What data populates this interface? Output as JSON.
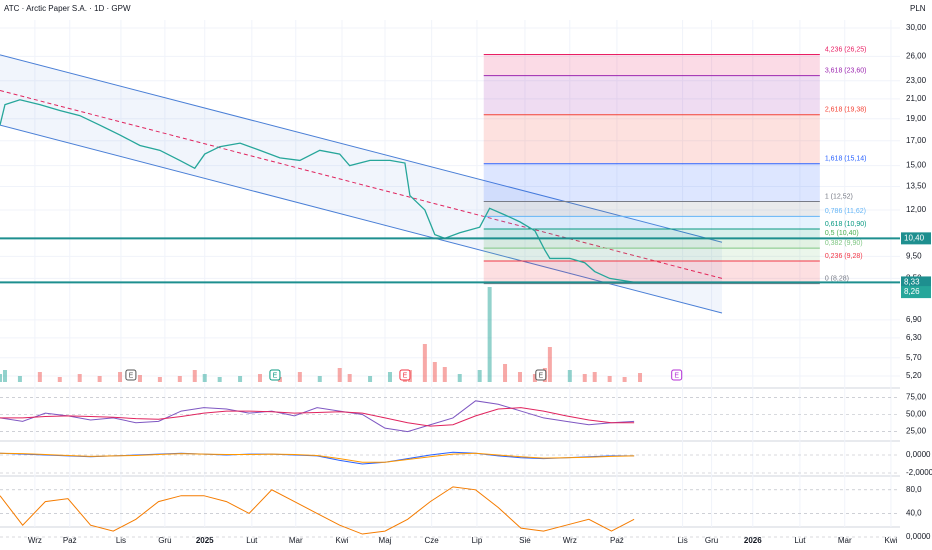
{
  "header": {
    "title": "ATC · Arctic Paper S.A. · 1D · GPW",
    "currency": "PLN"
  },
  "chart_data": [
    {
      "type": "price",
      "x": [
        -0.77,
        -0.66,
        -0.33,
        0.11,
        0.55,
        0.99,
        1.43,
        1.88,
        2.32,
        2.76,
        3.2,
        3.53,
        3.75,
        4.08,
        4.53,
        4.97,
        5.41,
        5.85,
        6.29,
        6.73,
        6.95,
        7.4,
        7.84,
        8.17,
        8.28,
        8.61,
        8.83,
        9.05,
        9.38,
        9.82,
        10.04,
        10.38,
        10.71,
        11.04,
        11.26,
        11.37,
        11.81,
        12.14,
        12.36,
        12.69,
        13.02,
        13.36
      ],
      "values": [
        18.4,
        20.4,
        20.9,
        20.4,
        19.8,
        19.3,
        18.4,
        17.5,
        16.6,
        16.2,
        15.4,
        14.8,
        15.9,
        16.5,
        16.8,
        16.2,
        15.6,
        15.4,
        16.2,
        15.9,
        15.0,
        15.4,
        15.4,
        15.2,
        12.9,
        12.0,
        10.6,
        10.4,
        10.7,
        11.0,
        12.1,
        11.7,
        11.3,
        10.8,
        9.8,
        9.4,
        9.4,
        9.2,
        8.8,
        8.5,
        8.4,
        8.3
      ],
      "color": "#26a69a",
      "xlim": [
        -0.77,
        19.1
      ],
      "xticks": [
        {
          "value": 0,
          "label": "Wrz"
        },
        {
          "value": 0.77,
          "label": "Paź"
        },
        {
          "value": 1.9,
          "label": "Lis"
        },
        {
          "value": 2.87,
          "label": "Gru"
        },
        {
          "value": 3.75,
          "label": "2025"
        },
        {
          "value": 4.79,
          "label": "Lut"
        },
        {
          "value": 5.76,
          "label": "Mar"
        },
        {
          "value": 6.78,
          "label": "Kwi"
        },
        {
          "value": 7.73,
          "label": "Maj"
        },
        {
          "value": 8.76,
          "label": "Cze"
        },
        {
          "value": 9.76,
          "label": "Lip"
        },
        {
          "value": 10.82,
          "label": "Sie"
        },
        {
          "value": 11.81,
          "label": "Wrz"
        },
        {
          "value": 12.85,
          "label": "Paź"
        },
        {
          "value": 14.3,
          "label": "Lis"
        },
        {
          "value": 14.94,
          "label": "Gru"
        },
        {
          "value": 15.85,
          "label": "2026"
        },
        {
          "value": 16.89,
          "label": "Lut"
        },
        {
          "value": 17.88,
          "label": "Mar"
        },
        {
          "value": 18.9,
          "label": "Kwi"
        }
      ],
      "ylim": [
        5.2,
        30
      ],
      "log_scale": true,
      "yticks": [
        {
          "value": 30,
          "label": "30,00"
        },
        {
          "value": 26,
          "label": "26,00"
        },
        {
          "value": 23,
          "label": "23,00"
        },
        {
          "value": 21,
          "label": "21,00"
        },
        {
          "value": 19,
          "label": "19,00"
        },
        {
          "value": 17,
          "label": "17,00"
        },
        {
          "value": 15,
          "label": "15,00"
        },
        {
          "value": 13.5,
          "label": "13,50"
        },
        {
          "value": 12,
          "label": "12,00"
        },
        {
          "value": 9.5,
          "label": "9,50"
        },
        {
          "value": 8.5,
          "label": "8,50"
        },
        {
          "value": 6.9,
          "label": "6,90"
        },
        {
          "value": 6.3,
          "label": "6,30"
        },
        {
          "value": 5.7,
          "label": "5,70"
        },
        {
          "value": 5.2,
          "label": "5,20"
        }
      ],
      "channel": {
        "color": "#4a7fd6",
        "x": [
          -0.77,
          15.17
        ],
        "upper": [
          26.2,
          10.2
        ],
        "middle": [
          21.9,
          8.5
        ],
        "lower": [
          18.4,
          7.14
        ]
      },
      "fibonacci": {
        "x": [
          9.91,
          17.33
        ],
        "prices": [
          26.25,
          23.6,
          19.38,
          15.14,
          12.52,
          11.62,
          10.9,
          10.4,
          9.9,
          9.28,
          8.28
        ],
        "labels": [
          "4,236 (26,25)",
          "3,618 (23,60)",
          "2,618 (19,38)",
          "1,618 (15,14)",
          "1 (12,52)",
          "0,786 (11,62)",
          "0,618 (10,90)",
          "0,5 (10,40)",
          "0,382 (9,90)",
          "0,236 (9,28)",
          "0 (8,28)"
        ],
        "colors": [
          "#e91e63",
          "#9c27b0",
          "#f44336",
          "#2962ff",
          "#787b86",
          "#64b5f6",
          "#089981",
          "#4caf50",
          "#81c784",
          "#f23645",
          "#787b86"
        ]
      },
      "levels": {
        "values": [
          10.4,
          8.33
        ],
        "labels": [
          "10,40",
          "8,33"
        ],
        "color": "#1e8f8f"
      },
      "last_price": {
        "value": 8.26,
        "label": "8,26",
        "color": "#26a69a"
      },
      "volume": {
        "values": [
          8,
          12,
          6,
          10,
          5,
          8,
          6,
          10,
          7,
          5,
          6,
          12,
          8,
          5,
          6,
          8,
          5,
          10,
          6,
          14,
          8,
          6,
          10,
          7,
          12,
          38,
          20,
          15,
          8,
          12,
          95,
          18,
          10,
          8,
          14,
          35,
          12,
          8,
          10,
          6,
          5,
          9
        ],
        "ylim": [
          0,
          100
        ]
      },
      "events": {
        "x": [
          2.12,
          5.3,
          8.17,
          11.17,
          14.17
        ],
        "labels": [
          "E",
          "E",
          "E",
          "E",
          "E"
        ],
        "colors": [
          "#555",
          "#089981",
          "#f23645",
          "#555",
          "#b42fd6"
        ]
      }
    },
    {
      "type": "oscillator",
      "x": [
        -0.77,
        -0.27,
        0.23,
        0.73,
        1.23,
        1.73,
        2.23,
        2.73,
        3.23,
        3.73,
        4.23,
        4.73,
        5.23,
        5.73,
        6.23,
        6.73,
        7.23,
        7.73,
        8.23,
        8.73,
        9.23,
        9.73,
        10.23,
        10.73,
        11.23,
        11.73,
        12.23,
        12.73,
        13.23
      ],
      "series": [
        {
          "color": "#7e57c2",
          "values": [
            45,
            40,
            52,
            48,
            42,
            45,
            38,
            40,
            55,
            60,
            58,
            52,
            55,
            48,
            60,
            55,
            50,
            30,
            25,
            35,
            45,
            70,
            65,
            55,
            45,
            40,
            35,
            38,
            40
          ]
        },
        {
          "color": "#e0245e",
          "values": [
            45,
            45,
            47,
            48,
            47,
            46,
            44,
            43,
            47,
            52,
            55,
            55,
            54,
            52,
            53,
            54,
            52,
            45,
            38,
            33,
            35,
            48,
            58,
            60,
            55,
            48,
            42,
            38,
            38
          ]
        }
      ],
      "ylim": [
        20,
        80
      ],
      "yticks": [
        {
          "value": 75,
          "label": "75,00"
        },
        {
          "value": 50,
          "label": "50,00"
        },
        {
          "value": 25,
          "label": "25,00"
        }
      ]
    },
    {
      "type": "oscillator",
      "x": [
        -0.77,
        -0.27,
        0.23,
        0.73,
        1.23,
        1.73,
        2.23,
        2.73,
        3.23,
        3.73,
        4.23,
        4.73,
        5.23,
        5.73,
        6.23,
        6.73,
        7.23,
        7.73,
        8.23,
        8.73,
        9.23,
        9.73,
        10.23,
        10.73,
        11.23,
        11.73,
        12.23,
        12.73,
        13.23
      ],
      "series": [
        {
          "color": "#2962ff",
          "values": [
            0.2,
            0.1,
            0,
            -0.1,
            -0.2,
            -0.1,
            0,
            0.1,
            0.2,
            0.1,
            0,
            0.1,
            0.1,
            0,
            -0.1,
            -0.6,
            -1,
            -0.8,
            -0.4,
            0,
            0.3,
            0.2,
            -0.1,
            -0.3,
            -0.4,
            -0.3,
            -0.2,
            -0.1,
            -0.1
          ]
        },
        {
          "color": "#ff9800",
          "values": [
            0.2,
            0.15,
            0.05,
            -0.05,
            -0.15,
            -0.1,
            -0.05,
            0.05,
            0.15,
            0.1,
            0.05,
            0.05,
            0.1,
            0.05,
            -0.05,
            -0.4,
            -0.8,
            -0.8,
            -0.5,
            -0.2,
            0.1,
            0.2,
            0,
            -0.2,
            -0.35,
            -0.3,
            -0.25,
            -0.15,
            -0.1
          ]
        }
      ],
      "ylim": [
        -3,
        1
      ],
      "yticks": [
        {
          "value": 0,
          "label": "0,0000"
        },
        {
          "value": -2,
          "label": "-2,0000"
        }
      ]
    },
    {
      "type": "oscillator",
      "x": [
        -0.77,
        -0.27,
        0.23,
        0.73,
        1.23,
        1.73,
        2.23,
        2.73,
        3.23,
        3.73,
        4.23,
        4.73,
        5.23,
        5.73,
        6.23,
        6.73,
        7.23,
        7.73,
        8.23,
        8.73,
        9.23,
        9.73,
        10.23,
        10.73,
        11.23,
        11.73,
        12.23,
        12.73,
        13.23
      ],
      "series": [
        {
          "color": "#f57c00",
          "values": [
            70,
            20,
            60,
            65,
            20,
            10,
            30,
            60,
            70,
            70,
            60,
            40,
            80,
            60,
            40,
            20,
            5,
            10,
            30,
            60,
            85,
            80,
            50,
            15,
            10,
            20,
            30,
            10,
            30
          ]
        }
      ],
      "ylim": [
        0,
        100
      ],
      "yticks": [
        {
          "value": 80,
          "label": "80,0"
        },
        {
          "value": 40,
          "label": "40,0"
        },
        {
          "value": 0,
          "label": "0,0000"
        }
      ]
    }
  ]
}
